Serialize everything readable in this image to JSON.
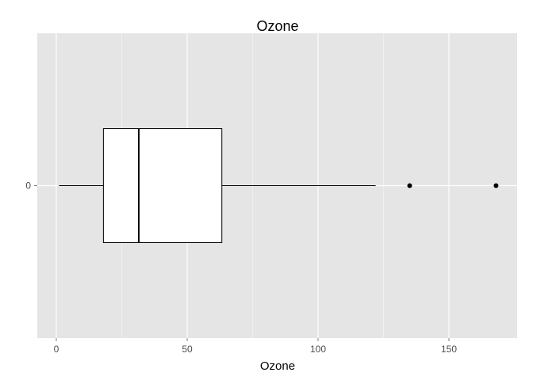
{
  "chart_data": {
    "type": "boxplot",
    "title": "Ozone",
    "xlabel": "Ozone",
    "ylabel": "",
    "x_ticks": [
      0,
      50,
      100,
      150
    ],
    "x_minor_ticks": [
      25,
      75,
      125
    ],
    "xlim": [
      -7,
      176
    ],
    "y_categories": [
      "0"
    ],
    "grid": true,
    "boxes": [
      {
        "category": "0",
        "whisker_low": 1,
        "q1": 18,
        "median": 31.5,
        "q3": 63.25,
        "whisker_high": 122,
        "outliers": [
          135,
          168
        ]
      }
    ],
    "colors": {
      "panel_background": "#e5e5e5",
      "grid_major": "#ffffff",
      "grid_minor": "#f2f2f2",
      "box_fill": "#ffffff",
      "box_stroke": "#000000",
      "outlier": "#000000",
      "tick_label": "#4d4d4d"
    }
  }
}
